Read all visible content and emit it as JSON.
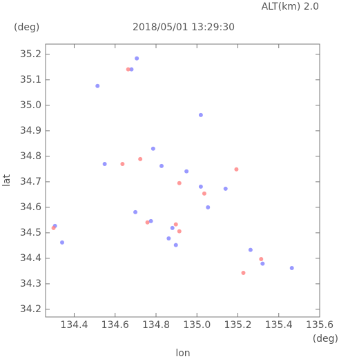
{
  "chart_data": {
    "type": "scatter",
    "title": "2018/05/01 13:29:30",
    "annotation": "ALT(km) 2.0",
    "y_unit": "(deg)",
    "x_unit": "(deg)",
    "x_label": "lon",
    "y_label": "lat",
    "xlim": [
      134.26,
      135.6
    ],
    "ylim": [
      34.17,
      35.24
    ],
    "xticks": [
      134.4,
      134.6,
      134.8,
      {
        "value": 135,
        "label": "135.0"
      },
      135.2,
      135.4,
      135.6
    ],
    "yticks": [
      34.2,
      34.3,
      34.4,
      34.5,
      34.6,
      34.7,
      34.8,
      34.9,
      {
        "value": 35,
        "label": "35.0"
      },
      35.1,
      35.2
    ],
    "series": [
      {
        "color": "#8080ff",
        "x": [
          134.706,
          134.68,
          134.514,
          135.019,
          134.786,
          134.827,
          134.949,
          134.549,
          134.306,
          134.341,
          134.88,
          134.862,
          134.775,
          135.262,
          135.321,
          135.054,
          135.019,
          135.14,
          134.699,
          135.464,
          134.897
        ],
        "values": [
          35.184,
          35.141,
          35.076,
          34.962,
          34.83,
          34.762,
          34.741,
          34.77,
          34.527,
          34.462,
          34.519,
          34.478,
          34.546,
          34.433,
          34.379,
          34.6,
          34.681,
          34.673,
          34.581,
          34.362,
          34.452
        ]
      },
      {
        "color": "#ff8080",
        "x": [
          134.664,
          134.636,
          134.723,
          135.193,
          134.897,
          134.914,
          134.758,
          135.227,
          135.036,
          134.914,
          135.314,
          134.299
        ],
        "values": [
          35.141,
          34.77,
          34.789,
          34.749,
          34.533,
          34.506,
          34.541,
          34.343,
          34.654,
          34.695,
          34.397,
          34.519
        ]
      }
    ]
  }
}
